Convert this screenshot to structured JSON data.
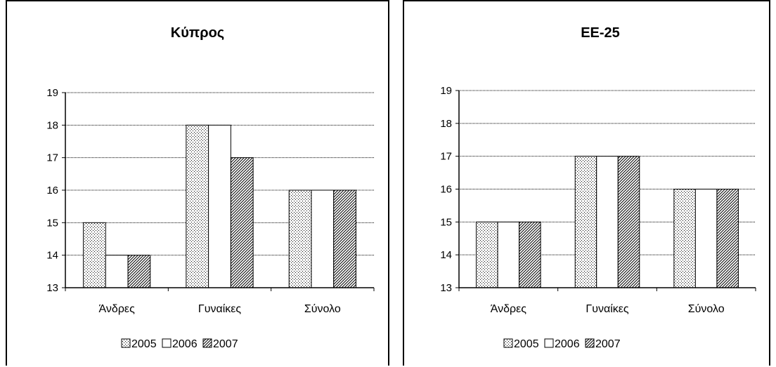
{
  "chart_data": [
    {
      "type": "bar",
      "title": "Κύπρος",
      "categories": [
        "Άνδρες",
        "Γυναίκες",
        "Σύνολο"
      ],
      "series": [
        {
          "name": "2005",
          "values": [
            15,
            18,
            16
          ]
        },
        {
          "name": "2006",
          "values": [
            14,
            18,
            16
          ]
        },
        {
          "name": "2007",
          "values": [
            14,
            17,
            16
          ]
        }
      ],
      "ylim": [
        13,
        19
      ],
      "yticks": [
        "13",
        "14",
        "15",
        "16",
        "17",
        "18",
        "19"
      ],
      "grid": true,
      "legend": "bottom"
    },
    {
      "type": "bar",
      "title": "ΕΕ-25",
      "categories": [
        "Άνδρες",
        "Γυναίκες",
        "Σύνολο"
      ],
      "series": [
        {
          "name": "2005",
          "values": [
            15,
            17,
            16
          ]
        },
        {
          "name": "2006",
          "values": [
            15,
            17,
            16
          ]
        },
        {
          "name": "2007",
          "values": [
            15,
            17,
            16
          ]
        }
      ],
      "ylim": [
        13,
        19
      ],
      "yticks": [
        "13",
        "14",
        "15",
        "16",
        "17",
        "18",
        "19"
      ],
      "grid": true,
      "legend": "bottom"
    }
  ],
  "series_styles": [
    "dotted-fill",
    "white-fill",
    "diagonal-hatch"
  ],
  "colors": {
    "bar_outline": "#000000",
    "gridline": "#000000",
    "background": "#ffffff"
  }
}
